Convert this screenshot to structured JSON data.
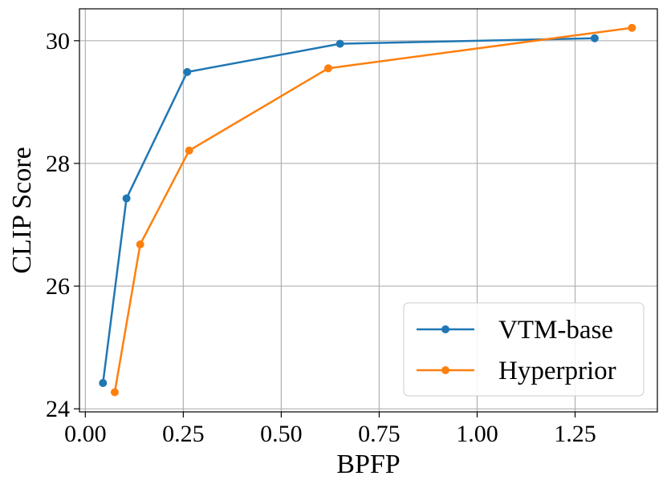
{
  "chart_data": {
    "type": "line",
    "title": "",
    "xlabel": "BPFP",
    "ylabel": "CLIP Score",
    "xlim": [
      -0.015,
      1.46
    ],
    "ylim": [
      23.95,
      30.52
    ],
    "xticks": [
      0.0,
      0.25,
      0.5,
      0.75,
      1.0,
      1.25
    ],
    "xtick_labels": [
      "0.00",
      "0.25",
      "0.50",
      "0.75",
      "1.00",
      "1.25"
    ],
    "yticks": [
      24,
      26,
      28,
      30
    ],
    "ytick_labels": [
      "24",
      "26",
      "28",
      "30"
    ],
    "grid": true,
    "legend_position": "lower-right",
    "series": [
      {
        "name": "VTM-base",
        "color": "#1f77b4",
        "x": [
          0.045,
          0.105,
          0.26,
          0.65,
          1.3
        ],
        "y": [
          24.42,
          27.43,
          29.49,
          29.95,
          30.04
        ]
      },
      {
        "name": "Hyperprior",
        "color": "#ff7f0e",
        "x": [
          0.075,
          0.14,
          0.265,
          0.62,
          1.395
        ],
        "y": [
          24.27,
          26.68,
          28.21,
          29.55,
          30.21
        ]
      }
    ]
  }
}
